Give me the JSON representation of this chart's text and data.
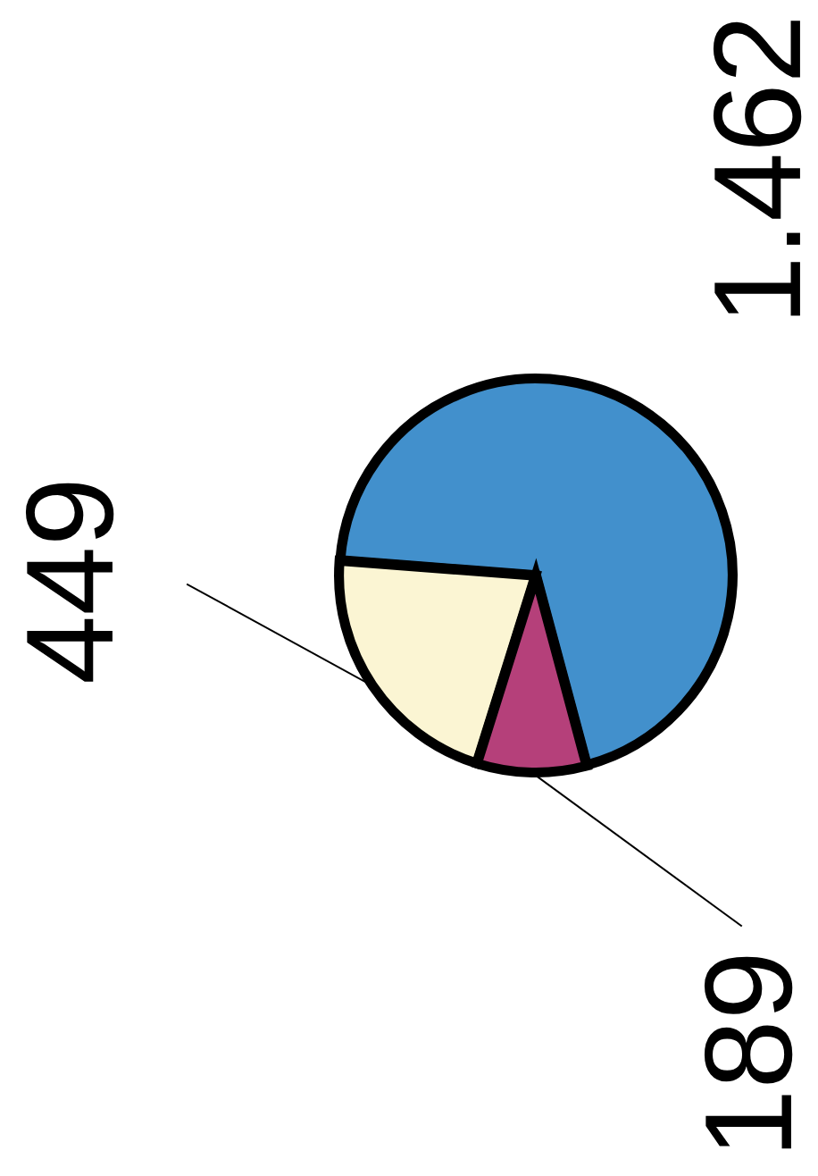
{
  "chart_data": {
    "type": "pie",
    "categories": [
      null,
      null,
      null
    ],
    "values": [
      1462,
      449,
      189
    ],
    "value_labels": [
      "1.462",
      "449",
      "189"
    ],
    "colors": [
      "#4290cc",
      "#fbf5d3",
      "#b5407a"
    ]
  }
}
